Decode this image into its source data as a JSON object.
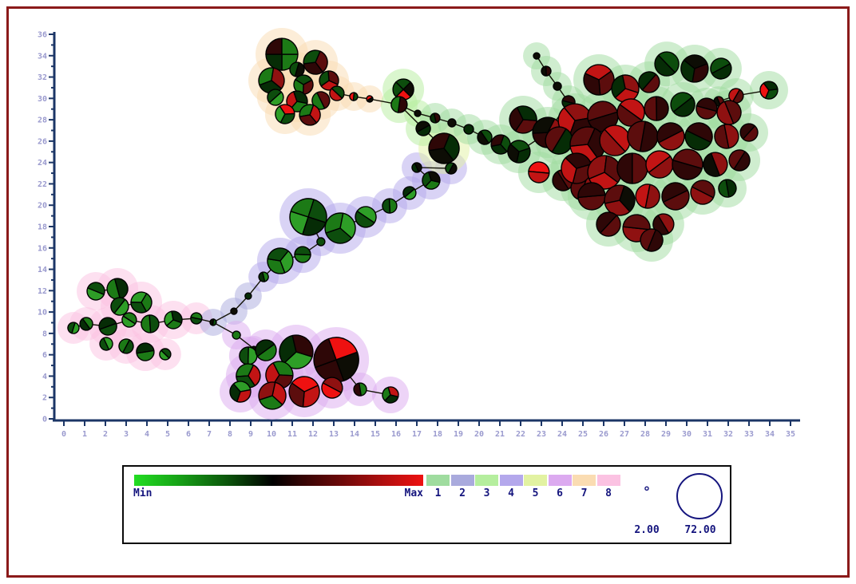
{
  "chart_data": {
    "type": "scatter",
    "subtype": "minimum-spanning-tree-bubble-network",
    "title": "",
    "xlabel": "",
    "ylabel": "",
    "x_axis": {
      "min": 0,
      "max": 35,
      "tick_step": 1,
      "label_step": 1
    },
    "y_axis": {
      "min": 0,
      "max": 36,
      "tick_step": 1,
      "label_step": 2
    },
    "grid": false,
    "node_fill_scale": {
      "min_label": "Min",
      "max_label": "Max",
      "gradient": [
        "#22dd22",
        "#000000",
        "#ee1111"
      ]
    },
    "size_scale": {
      "min": "2.00",
      "max": "72.00"
    },
    "groups": {
      "1": "#9fdc9f",
      "2": "#a9aadd",
      "3": "#b5ee9e",
      "4": "#b4a8ec",
      "5": "#e2f2a2",
      "6": "#dcaaf0",
      "7": "#fadcb2",
      "8": "#fbc2e2"
    },
    "palette": {
      "g1": "#2e9e27",
      "g2": "#1c7a16",
      "g3": "#0d4d0d",
      "g4": "#062c06",
      "bk": "#0d0d05",
      "m1": "#2e0707",
      "m2": "#5c0d0d",
      "m3": "#8f1111",
      "r1": "#c21414",
      "r2": "#ee1111"
    },
    "nodes": [
      [
        10.5,
        34.13,
        20,
        7,
        [
          "g2",
          "g4",
          "m1",
          "g2"
        ]
      ],
      [
        12.12,
        33.38,
        15,
        7,
        [
          "m1",
          "g3",
          "m2"
        ]
      ],
      [
        11.23,
        32.71,
        9,
        7,
        [
          "g3",
          "bk"
        ]
      ],
      [
        10.0,
        31.67,
        16,
        7,
        [
          "g2",
          "m3",
          "g4"
        ]
      ],
      [
        11.54,
        31.29,
        12,
        7,
        [
          "g3",
          "m2",
          "g2"
        ]
      ],
      [
        12.77,
        31.67,
        12,
        7,
        [
          "m2",
          "r1",
          "g3"
        ]
      ],
      [
        10.19,
        30.1,
        10,
        7,
        [
          "g1",
          "g3"
        ]
      ],
      [
        11.23,
        29.72,
        13,
        7,
        [
          "g2",
          "r1",
          "g4"
        ]
      ],
      [
        12.38,
        29.8,
        11,
        7,
        [
          "g2",
          "m2"
        ]
      ],
      [
        10.65,
        28.53,
        12,
        7,
        [
          "g1",
          "r2",
          "g3"
        ]
      ],
      [
        11.85,
        28.46,
        13,
        7,
        [
          "g2",
          "r1",
          "m2"
        ]
      ],
      [
        13.15,
        30.47,
        9,
        7,
        [
          "g3",
          "r1"
        ]
      ],
      [
        13.96,
        30.17,
        5,
        7,
        [
          "g3",
          "r2"
        ]
      ],
      [
        14.73,
        29.95,
        4,
        7,
        [
          "bk",
          "r2"
        ]
      ],
      [
        1.54,
        11.95,
        11,
        8,
        [
          "g1",
          "g3"
        ]
      ],
      [
        2.58,
        12.17,
        13,
        8,
        [
          "g2",
          "g4"
        ]
      ],
      [
        2.69,
        10.53,
        11,
        8,
        [
          "g3",
          "g1"
        ]
      ],
      [
        3.73,
        10.9,
        13,
        8,
        [
          "g1",
          "g2",
          "g3"
        ]
      ],
      [
        1.08,
        8.89,
        8,
        8,
        [
          "g2",
          "g4"
        ]
      ],
      [
        0.46,
        8.51,
        7,
        8,
        [
          "g1",
          "g3"
        ]
      ],
      [
        2.12,
        8.66,
        11,
        8,
        [
          "g3",
          "g4"
        ]
      ],
      [
        3.15,
        9.26,
        9,
        8,
        [
          "g1",
          "g2"
        ]
      ],
      [
        4.15,
        8.89,
        11,
        8,
        [
          "g2",
          "g3"
        ]
      ],
      [
        5.27,
        9.26,
        11,
        8,
        [
          "g1",
          "g4",
          "g2"
        ]
      ],
      [
        6.38,
        9.41,
        7,
        8,
        [
          "g2",
          "g3"
        ]
      ],
      [
        2.04,
        7.02,
        8,
        8,
        [
          "g1",
          "g3"
        ]
      ],
      [
        3.0,
        6.8,
        9,
        8,
        [
          "g3",
          "g2"
        ]
      ],
      [
        3.92,
        6.27,
        11,
        8,
        [
          "g2",
          "g4"
        ]
      ],
      [
        4.88,
        6.05,
        7,
        8,
        [
          "g1",
          "g3"
        ]
      ],
      [
        7.19,
        9.04,
        4,
        2,
        [
          "bk",
          "g3"
        ]
      ],
      [
        8.19,
        10.08,
        4,
        2,
        [
          "bk"
        ]
      ],
      [
        8.88,
        11.5,
        4,
        2,
        [
          "g4"
        ]
      ],
      [
        9.62,
        13.29,
        6,
        4,
        [
          "g2",
          "g4"
        ]
      ],
      [
        10.42,
        14.79,
        16,
        4,
        [
          "g1",
          "g2",
          "g3"
        ]
      ],
      [
        11.5,
        15.38,
        10,
        4,
        [
          "g2",
          "g3"
        ]
      ],
      [
        12.38,
        16.58,
        5,
        4,
        [
          "g3"
        ]
      ],
      [
        11.77,
        18.9,
        23,
        4,
        [
          "g1",
          "g2",
          "g3",
          "g4"
        ]
      ],
      [
        13.31,
        17.85,
        19,
        4,
        [
          "g2",
          "g1",
          "g3"
        ]
      ],
      [
        14.54,
        18.9,
        13,
        4,
        [
          "g1",
          "g3"
        ]
      ],
      [
        15.69,
        19.94,
        9,
        4,
        [
          "g2",
          "g3"
        ]
      ],
      [
        16.65,
        21.14,
        8,
        4,
        [
          "g1",
          "g4"
        ]
      ],
      [
        17.69,
        22.33,
        11,
        4,
        [
          "g2",
          "g3",
          "bk"
        ]
      ],
      [
        17.0,
        23.53,
        6,
        4,
        [
          "g4",
          "bk"
        ]
      ],
      [
        18.65,
        23.45,
        7,
        4,
        [
          "g3",
          "bk"
        ]
      ],
      [
        18.31,
        25.32,
        19,
        5,
        [
          "m1",
          "g4",
          "bk"
        ]
      ],
      [
        16.35,
        30.84,
        13,
        3,
        [
          "g3",
          "bk",
          "r2",
          "g3"
        ]
      ],
      [
        16.15,
        29.42,
        10,
        3,
        [
          "m1",
          "g2"
        ]
      ],
      [
        17.31,
        27.18,
        9,
        3,
        [
          "g4",
          "bk"
        ]
      ],
      [
        17.04,
        28.6,
        4,
        3,
        [
          "bk"
        ]
      ],
      [
        17.88,
        28.16,
        6,
        1,
        [
          "g4",
          "m1"
        ]
      ],
      [
        18.69,
        27.71,
        5,
        1,
        [
          "bk"
        ]
      ],
      [
        19.5,
        27.11,
        6,
        1,
        [
          "g4"
        ]
      ],
      [
        20.27,
        26.36,
        9,
        1,
        [
          "g3",
          "bk"
        ]
      ],
      [
        21.04,
        25.69,
        12,
        1,
        [
          "g3",
          "g4",
          "m1"
        ]
      ],
      [
        21.92,
        25.02,
        14,
        1,
        [
          "g4",
          "bk",
          "g3"
        ]
      ],
      [
        22.77,
        33.98,
        4,
        1,
        [
          "bk"
        ]
      ],
      [
        23.23,
        32.56,
        6,
        1,
        [
          "bk",
          "m1"
        ]
      ],
      [
        23.77,
        31.14,
        5,
        1,
        [
          "bk"
        ]
      ],
      [
        24.31,
        29.65,
        8,
        1,
        [
          "m1",
          "g4"
        ]
      ],
      [
        31.54,
        29.72,
        6,
        1,
        [
          "m2",
          "bk"
        ]
      ],
      [
        32.38,
        30.25,
        9,
        1,
        [
          "m2",
          "r1"
        ]
      ],
      [
        33.96,
        30.77,
        11,
        1,
        [
          "g3",
          "r2",
          "g4"
        ]
      ],
      [
        29.04,
        33.23,
        15,
        1,
        [
          "g4",
          "g3"
        ]
      ],
      [
        30.38,
        32.79,
        17,
        1,
        [
          "g4",
          "bk",
          "m1"
        ]
      ],
      [
        31.65,
        32.79,
        13,
        1,
        [
          "g3",
          "g4"
        ]
      ],
      [
        25.77,
        31.74,
        19,
        1,
        [
          "r1",
          "m2",
          "m1"
        ]
      ],
      [
        27.04,
        30.92,
        17,
        1,
        [
          "m3",
          "r1",
          "g4"
        ]
      ],
      [
        28.19,
        31.52,
        13,
        1,
        [
          "m2",
          "g4"
        ]
      ],
      [
        22.12,
        28.01,
        17,
        1,
        [
          "m2",
          "m1",
          "g4"
        ]
      ],
      [
        23.31,
        26.81,
        19,
        1,
        [
          "m1",
          "bk",
          "m3"
        ]
      ],
      [
        24.62,
        27.93,
        21,
        1,
        [
          "r1",
          "m3",
          "m1"
        ]
      ],
      [
        25.96,
        28.31,
        19,
        1,
        [
          "m2",
          "m1"
        ]
      ],
      [
        27.31,
        28.68,
        17,
        1,
        [
          "r1",
          "m2"
        ]
      ],
      [
        28.54,
        29.05,
        15,
        1,
        [
          "m1",
          "m2"
        ]
      ],
      [
        29.81,
        29.43,
        15,
        1,
        [
          "g4",
          "g3"
        ]
      ],
      [
        30.96,
        29.05,
        13,
        1,
        [
          "m2",
          "m1"
        ]
      ],
      [
        32.04,
        28.68,
        15,
        1,
        [
          "m3",
          "m2"
        ]
      ],
      [
        23.85,
        26.06,
        17,
        1,
        [
          "m2",
          "g4"
        ]
      ],
      [
        25.23,
        25.69,
        22,
        1,
        [
          "m2",
          "m1",
          "r1"
        ]
      ],
      [
        26.54,
        26.06,
        19,
        1,
        [
          "r1",
          "m3"
        ]
      ],
      [
        27.88,
        26.44,
        19,
        1,
        [
          "m1",
          "m2"
        ]
      ],
      [
        29.23,
        26.44,
        17,
        1,
        [
          "m3",
          "m1"
        ]
      ],
      [
        30.58,
        26.44,
        17,
        1,
        [
          "g4",
          "m1"
        ]
      ],
      [
        31.92,
        26.44,
        15,
        1,
        [
          "m2",
          "m3"
        ]
      ],
      [
        33.0,
        26.81,
        11,
        1,
        [
          "m1",
          "m2"
        ]
      ],
      [
        22.88,
        23.08,
        13,
        1,
        [
          "r2",
          "r1"
        ]
      ],
      [
        24.04,
        22.33,
        13,
        1,
        [
          "m2",
          "m1"
        ]
      ],
      [
        25.0,
        21.58,
        15,
        1,
        [
          "m3",
          "m2"
        ]
      ],
      [
        24.69,
        23.45,
        19,
        1,
        [
          "m2",
          "r1",
          "m1"
        ]
      ],
      [
        26.04,
        23.08,
        21,
        1,
        [
          "r1",
          "m3",
          "m2"
        ]
      ],
      [
        27.38,
        23.45,
        19,
        1,
        [
          "m1",
          "m2"
        ]
      ],
      [
        28.69,
        23.82,
        17,
        1,
        [
          "r1",
          "m3"
        ]
      ],
      [
        30.04,
        23.82,
        19,
        1,
        [
          "m2",
          "m1"
        ]
      ],
      [
        31.38,
        23.82,
        15,
        1,
        [
          "m3",
          "bk"
        ]
      ],
      [
        32.54,
        24.2,
        13,
        1,
        [
          "m1",
          "m2"
        ]
      ],
      [
        25.42,
        20.84,
        17,
        1,
        [
          "m2",
          "m1"
        ]
      ],
      [
        26.77,
        20.46,
        19,
        1,
        [
          "m3",
          "m2",
          "bk"
        ]
      ],
      [
        28.12,
        20.84,
        15,
        1,
        [
          "r1",
          "m3"
        ]
      ],
      [
        29.46,
        20.84,
        17,
        1,
        [
          "m1",
          "m2"
        ]
      ],
      [
        30.77,
        21.21,
        15,
        1,
        [
          "m2",
          "m3"
        ]
      ],
      [
        31.96,
        21.58,
        11,
        1,
        [
          "g4",
          "g3"
        ]
      ],
      [
        26.23,
        18.22,
        15,
        1,
        [
          "m2",
          "m1"
        ]
      ],
      [
        27.58,
        17.85,
        17,
        1,
        [
          "m3",
          "m2"
        ]
      ],
      [
        28.88,
        18.22,
        13,
        1,
        [
          "m1",
          "m3"
        ]
      ],
      [
        28.31,
        16.73,
        14,
        1,
        [
          "m2",
          "m1"
        ]
      ],
      [
        8.31,
        7.84,
        5,
        6,
        [
          "g2"
        ]
      ],
      [
        9.15,
        6.57,
        3,
        6,
        [
          "bk"
        ]
      ],
      [
        8.88,
        5.9,
        11,
        6,
        [
          "g1",
          "g3"
        ]
      ],
      [
        9.73,
        6.42,
        13,
        6,
        [
          "g2",
          "g4"
        ]
      ],
      [
        11.19,
        6.27,
        21,
        6,
        [
          "g1",
          "g4",
          "m1"
        ]
      ],
      [
        13.12,
        5.53,
        28,
        6,
        [
          "m1",
          "m1",
          "r2",
          "bk"
        ]
      ],
      [
        10.38,
        4.11,
        17,
        6,
        [
          "r1",
          "g2",
          "m2"
        ]
      ],
      [
        8.88,
        4.03,
        15,
        6,
        [
          "g2",
          "r1",
          "g3"
        ]
      ],
      [
        8.5,
        2.54,
        13,
        6,
        [
          "g1",
          "r1",
          "g4"
        ]
      ],
      [
        10.04,
        2.17,
        17,
        6,
        [
          "r1",
          "g2",
          "m3"
        ]
      ],
      [
        11.58,
        2.54,
        19,
        6,
        [
          "r1",
          "m2",
          "r2"
        ]
      ],
      [
        12.92,
        2.91,
        13,
        6,
        [
          "r2",
          "m3"
        ]
      ],
      [
        14.27,
        2.76,
        8,
        6,
        [
          "m1",
          "g2"
        ]
      ],
      [
        15.73,
        2.24,
        10,
        6,
        [
          "g2",
          "r1",
          "g4"
        ]
      ]
    ],
    "edges": [
      [
        11,
        12
      ],
      [
        12,
        13
      ],
      [
        13,
        46
      ],
      [
        45,
        46
      ],
      [
        46,
        48
      ],
      [
        48,
        49
      ],
      [
        49,
        50
      ],
      [
        50,
        51
      ],
      [
        51,
        52
      ],
      [
        52,
        53
      ],
      [
        53,
        54
      ],
      [
        54,
        69
      ],
      [
        55,
        56
      ],
      [
        56,
        57
      ],
      [
        57,
        58
      ],
      [
        58,
        69
      ],
      [
        76,
        59
      ],
      [
        59,
        60
      ],
      [
        60,
        61
      ],
      [
        19,
        18
      ],
      [
        18,
        20
      ],
      [
        20,
        21
      ],
      [
        21,
        22
      ],
      [
        22,
        23
      ],
      [
        23,
        24
      ],
      [
        24,
        29
      ],
      [
        14,
        15
      ],
      [
        15,
        16
      ],
      [
        16,
        17
      ],
      [
        16,
        21
      ],
      [
        29,
        30
      ],
      [
        30,
        31
      ],
      [
        31,
        32
      ],
      [
        32,
        33
      ],
      [
        33,
        34
      ],
      [
        34,
        35
      ],
      [
        35,
        36
      ],
      [
        36,
        37
      ],
      [
        37,
        38
      ],
      [
        38,
        39
      ],
      [
        39,
        40
      ],
      [
        40,
        41
      ],
      [
        41,
        42
      ],
      [
        42,
        43
      ],
      [
        43,
        44
      ],
      [
        44,
        47
      ],
      [
        47,
        46
      ],
      [
        29,
        105
      ],
      [
        105,
        106
      ],
      [
        106,
        108
      ],
      [
        110,
        117
      ],
      [
        117,
        118
      ]
    ]
  },
  "legend": {
    "gradient_min_label": "Min",
    "gradient_max_label": "Max",
    "group_labels": [
      "1",
      "2",
      "3",
      "4",
      "5",
      "6",
      "7",
      "8"
    ],
    "size_small_symbol": "°",
    "size_small_value": "2.00",
    "size_large_value": "72.00"
  }
}
